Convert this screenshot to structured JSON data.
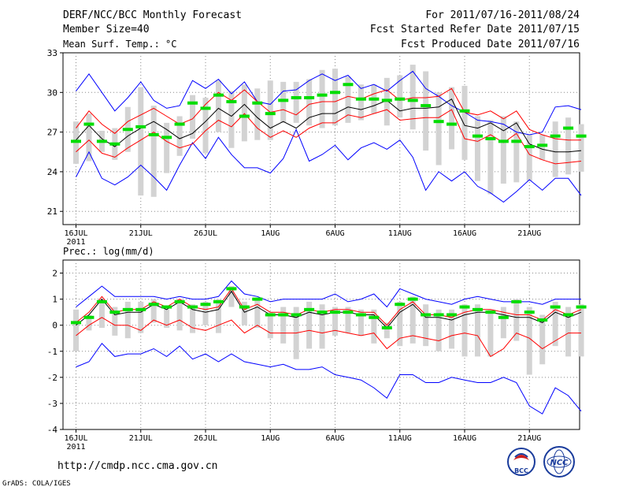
{
  "header": {
    "title": "DERF/NCC/BCC Monthly Forecast",
    "member_size": "Member Size=40",
    "variable": "Mean Surf. Temp.: °C",
    "period": "For 2011/07/16-2011/08/24",
    "fcst_started": "Fcst Started Refer Date 2011/07/15",
    "fcst_produced": "Fcst Produced Date 2011/07/16"
  },
  "footer": {
    "url": "http://cmdp.ncc.cma.gov.cn",
    "credit": "GrADS: COLA/IGES",
    "logo_left_text": "BCC",
    "logo_right_text": "NCC"
  },
  "colors": {
    "bar": "#d3d3d3",
    "median": "#00dd00",
    "mean": "#000000",
    "inner": "#ff0000",
    "outer": "#0000ff",
    "grid": "#888888"
  },
  "chart_data": [
    {
      "type": "line",
      "title": "Mean Surf. Temp.: °C",
      "x_ticks": [
        "16JUL",
        "21JUL",
        "26JUL",
        "1AUG",
        "6AUG",
        "11AUG",
        "16AUG",
        "21AUG"
      ],
      "x_year_label": "2011",
      "days": 40,
      "ylim": [
        20,
        33
      ],
      "y_ticks": [
        21,
        24,
        27,
        30,
        33
      ],
      "grid": true,
      "series": [
        {
          "name": "mean",
          "values": [
            26.4,
            27.5,
            26.5,
            25.9,
            26.7,
            27.3,
            27.8,
            27.2,
            26.5,
            26.9,
            27.8,
            28.8,
            28.2,
            29.1,
            28.1,
            27.3,
            27.8,
            27.3,
            28.1,
            28.4,
            28.4,
            28.9,
            28.7,
            29.0,
            29.4,
            28.6,
            28.8,
            28.8,
            28.9,
            29.5,
            27.5,
            27.3,
            27.7,
            27.1,
            27.7,
            26.1,
            25.7,
            25.5,
            25.5,
            25.6
          ]
        },
        {
          "name": "plus_sd",
          "values": [
            27.3,
            28.6,
            27.6,
            26.9,
            27.8,
            28.3,
            28.8,
            28.2,
            27.6,
            28.0,
            29.1,
            30.0,
            29.4,
            30.2,
            29.3,
            28.5,
            28.7,
            28.3,
            29.1,
            29.3,
            29.3,
            29.7,
            29.5,
            29.9,
            30.2,
            29.4,
            29.6,
            29.6,
            29.7,
            30.3,
            28.5,
            28.3,
            28.6,
            28.0,
            28.6,
            27.2,
            26.8,
            26.5,
            26.4,
            26.4
          ]
        },
        {
          "name": "minus_sd",
          "values": [
            25.5,
            26.4,
            25.4,
            25.1,
            25.8,
            26.4,
            27.0,
            26.3,
            25.8,
            26.1,
            27.1,
            27.9,
            27.4,
            28.4,
            27.3,
            26.6,
            27.1,
            26.6,
            27.3,
            27.7,
            27.7,
            28.3,
            28.1,
            28.4,
            28.7,
            27.9,
            28.0,
            28.1,
            28.1,
            28.7,
            26.5,
            26.3,
            26.8,
            26.2,
            26.9,
            25.3,
            24.9,
            24.6,
            24.7,
            24.8
          ]
        },
        {
          "name": "max",
          "values": [
            30.1,
            31.4,
            30.0,
            28.6,
            29.6,
            30.8,
            29.4,
            28.8,
            29.0,
            30.9,
            30.3,
            31.0,
            29.9,
            30.8,
            29.3,
            29.1,
            30.1,
            30.2,
            30.9,
            31.4,
            30.9,
            31.3,
            30.3,
            30.6,
            30.1,
            30.9,
            31.6,
            30.3,
            29.7,
            29.0,
            28.5,
            27.9,
            27.8,
            27.6,
            27.0,
            26.8,
            27.0,
            28.9,
            29.0,
            28.7
          ]
        },
        {
          "name": "min",
          "values": [
            23.6,
            25.5,
            23.5,
            23.0,
            23.6,
            24.5,
            23.6,
            22.6,
            24.5,
            26.2,
            25.0,
            26.6,
            25.3,
            24.3,
            24.3,
            23.9,
            25.0,
            27.2,
            24.8,
            25.3,
            26.0,
            24.9,
            25.8,
            26.2,
            25.7,
            26.4,
            25.1,
            22.6,
            24.0,
            23.3,
            24.0,
            22.9,
            22.4,
            21.7,
            22.5,
            23.4,
            22.6,
            23.5,
            23.5,
            22.2
          ]
        },
        {
          "name": "median",
          "values": [
            26.3,
            27.6,
            26.3,
            26.1,
            27.2,
            27.4,
            26.8,
            26.6,
            27.6,
            29.2,
            28.8,
            29.8,
            29.3,
            28.2,
            29.2,
            28.4,
            29.4,
            29.6,
            29.6,
            29.8,
            30.0,
            30.6,
            29.5,
            29.5,
            29.4,
            29.5,
            29.4,
            29.0,
            27.8,
            27.6,
            28.6,
            26.7,
            26.5,
            26.3,
            26.3,
            25.9,
            26.0,
            26.7,
            27.3,
            26.7
          ]
        },
        {
          "name": "box_high",
          "values": [
            27.8,
            28.4,
            27.1,
            27.3,
            28.9,
            30.4,
            29.0,
            27.7,
            28.2,
            29.8,
            29.6,
            30.9,
            30.1,
            30.6,
            30.3,
            30.9,
            30.8,
            30.8,
            31.0,
            31.7,
            31.8,
            31.2,
            30.6,
            30.6,
            31.1,
            31.3,
            32.1,
            31.6,
            30.0,
            30.4,
            30.5,
            28.2,
            27.9,
            28.2,
            27.8,
            26.8,
            26.8,
            27.8,
            28.1,
            27.6
          ]
        },
        {
          "name": "box_low",
          "values": [
            24.6,
            24.8,
            25.5,
            24.9,
            25.5,
            22.2,
            22.1,
            23.9,
            25.2,
            26.5,
            25.4,
            27.0,
            25.8,
            26.3,
            26.4,
            26.4,
            27.7,
            27.7,
            27.5,
            27.3,
            27.5,
            27.7,
            27.9,
            28.4,
            27.5,
            28.1,
            27.2,
            25.6,
            24.5,
            25.7,
            24.9,
            23.3,
            22.3,
            23.1,
            23.2,
            23.3,
            24.9,
            23.6,
            23.8,
            24.0
          ]
        }
      ]
    },
    {
      "type": "line",
      "title": "Prec.: log(mm/d)",
      "x_ticks": [
        "16JUL",
        "21JUL",
        "26JUL",
        "1AUG",
        "6AUG",
        "11AUG",
        "16AUG",
        "21AUG"
      ],
      "x_year_label": "2011",
      "days": 40,
      "ylim": [
        -4,
        2.5
      ],
      "y_ticks": [
        -4,
        -3,
        -2,
        -1,
        0,
        1,
        2
      ],
      "grid": true,
      "series": [
        {
          "name": "mean",
          "values": [
            0.0,
            0.4,
            1.0,
            0.4,
            0.5,
            0.5,
            0.8,
            0.6,
            0.9,
            0.6,
            0.5,
            0.6,
            1.3,
            0.5,
            0.7,
            0.4,
            0.4,
            0.3,
            0.5,
            0.4,
            0.5,
            0.5,
            0.4,
            0.4,
            -0.1,
            0.5,
            0.8,
            0.3,
            0.3,
            0.2,
            0.4,
            0.5,
            0.5,
            0.4,
            0.3,
            0.3,
            0.1,
            0.5,
            0.3,
            0.5
          ]
        },
        {
          "name": "plus_sd",
          "values": [
            0.1,
            0.5,
            1.1,
            0.5,
            0.6,
            0.6,
            0.9,
            0.7,
            1.0,
            0.7,
            0.6,
            0.7,
            1.4,
            0.6,
            0.8,
            0.5,
            0.5,
            0.4,
            0.6,
            0.5,
            0.6,
            0.6,
            0.5,
            0.5,
            0.0,
            0.6,
            0.9,
            0.4,
            0.4,
            0.3,
            0.5,
            0.6,
            0.6,
            0.5,
            0.4,
            0.4,
            0.2,
            0.6,
            0.4,
            0.6
          ]
        },
        {
          "name": "minus_sd",
          "values": [
            -0.4,
            0.0,
            0.3,
            0.0,
            0.0,
            -0.2,
            0.2,
            0.0,
            0.2,
            -0.1,
            -0.2,
            0.0,
            0.2,
            -0.3,
            0.0,
            -0.3,
            -0.3,
            -0.3,
            -0.2,
            -0.3,
            -0.2,
            -0.3,
            -0.4,
            -0.3,
            -0.9,
            -0.5,
            -0.4,
            -0.5,
            -0.6,
            -0.4,
            -0.3,
            -0.4,
            -1.2,
            -0.9,
            -0.3,
            -0.5,
            -0.9,
            -0.6,
            -0.3,
            -0.3
          ]
        },
        {
          "name": "max",
          "values": [
            0.7,
            1.1,
            1.5,
            1.1,
            1.1,
            1.1,
            1.1,
            1.0,
            1.1,
            1.0,
            1.0,
            1.1,
            1.7,
            1.2,
            1.1,
            0.9,
            1.0,
            1.0,
            1.0,
            1.0,
            1.2,
            0.9,
            1.0,
            1.2,
            0.7,
            1.4,
            1.2,
            1.0,
            0.9,
            0.8,
            1.0,
            1.1,
            1.0,
            0.9,
            0.9,
            0.9,
            0.8,
            1.0,
            1.0,
            1.0
          ]
        },
        {
          "name": "min",
          "values": [
            -1.6,
            -1.4,
            -0.7,
            -1.2,
            -1.1,
            -1.1,
            -0.9,
            -1.2,
            -0.8,
            -1.3,
            -1.1,
            -1.4,
            -1.1,
            -1.4,
            -1.5,
            -1.6,
            -1.5,
            -1.7,
            -1.7,
            -1.6,
            -1.9,
            -2.0,
            -2.1,
            -2.4,
            -2.8,
            -1.9,
            -1.9,
            -2.2,
            -2.2,
            -2.0,
            -2.1,
            -2.2,
            -2.2,
            -2.0,
            -2.2,
            -3.1,
            -3.4,
            -2.4,
            -2.7,
            -3.3
          ]
        },
        {
          "name": "median",
          "values": [
            0.1,
            0.3,
            0.9,
            0.5,
            0.6,
            0.6,
            0.8,
            0.7,
            0.9,
            0.7,
            0.8,
            0.9,
            1.4,
            0.7,
            1.0,
            0.4,
            0.4,
            0.4,
            0.6,
            0.5,
            0.5,
            0.5,
            0.4,
            0.3,
            -0.1,
            0.8,
            1.0,
            0.4,
            0.4,
            0.4,
            0.7,
            0.6,
            0.5,
            0.3,
            0.9,
            0.5,
            0.2,
            0.7,
            0.4,
            0.7
          ]
        },
        {
          "name": "box_high",
          "values": [
            0.6,
            0.4,
            1.0,
            0.7,
            0.9,
            0.9,
            1.0,
            0.6,
            1.0,
            0.8,
            0.9,
            1.0,
            1.5,
            0.9,
            1.0,
            0.5,
            0.7,
            0.7,
            0.9,
            0.8,
            0.7,
            0.7,
            0.6,
            0.6,
            0.1,
            0.9,
            1.1,
            0.8,
            0.6,
            0.6,
            0.8,
            0.8,
            0.6,
            0.7,
            1.0,
            0.7,
            0.4,
            0.9,
            0.7,
            0.8
          ]
        },
        {
          "name": "box_low",
          "values": [
            -1.0,
            -0.2,
            -0.1,
            -0.4,
            -0.5,
            -0.3,
            0.1,
            -0.1,
            -0.2,
            -0.3,
            0.0,
            -0.3,
            0.7,
            0.0,
            -0.1,
            -0.5,
            -0.7,
            -1.3,
            -0.9,
            -0.9,
            -0.4,
            -0.3,
            -0.4,
            -0.7,
            -0.5,
            -0.8,
            -0.7,
            -0.8,
            -1.0,
            -0.9,
            -1.2,
            -1.2,
            -1.2,
            -0.5,
            -0.6,
            -1.9,
            -1.5,
            -0.8,
            -1.2,
            -1.2
          ]
        }
      ]
    }
  ]
}
